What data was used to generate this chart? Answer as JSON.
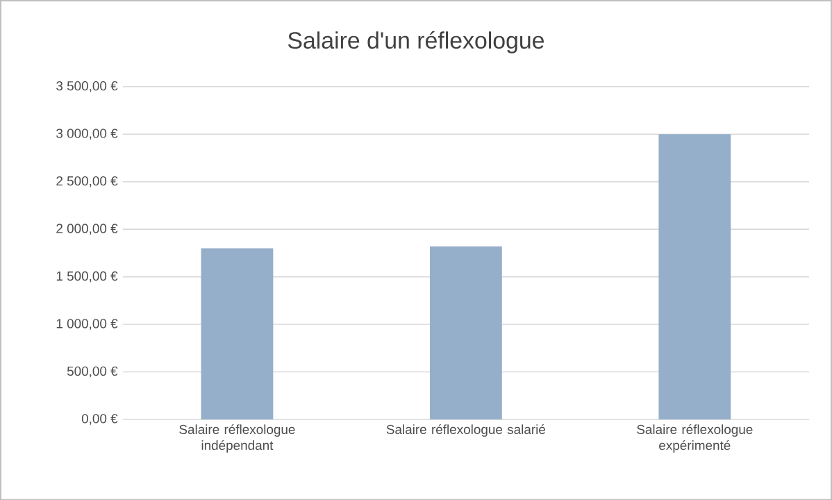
{
  "chart_data": {
    "type": "bar",
    "title": "Salaire d'un réflexologue",
    "categories": [
      "Salaire réflexologue indépendant",
      "Salaire réflexologue salarié",
      "Salaire réflexologue expérimenté"
    ],
    "values": [
      1800,
      1820,
      3000
    ],
    "color": "#95afca",
    "ylim": [
      0,
      3500
    ],
    "yticks": [
      {
        "value": 0,
        "label": "0,00 €"
      },
      {
        "value": 500,
        "label": "500,00 €"
      },
      {
        "value": 1000,
        "label": "1 000,00 €"
      },
      {
        "value": 1500,
        "label": "1 500,00 €"
      },
      {
        "value": 2000,
        "label": "2 000,00 €"
      },
      {
        "value": 2500,
        "label": "2 500,00 €"
      },
      {
        "value": 3000,
        "label": "3 000,00 €"
      },
      {
        "value": 3500,
        "label": "3 500,00 €"
      }
    ],
    "grid": "y"
  }
}
